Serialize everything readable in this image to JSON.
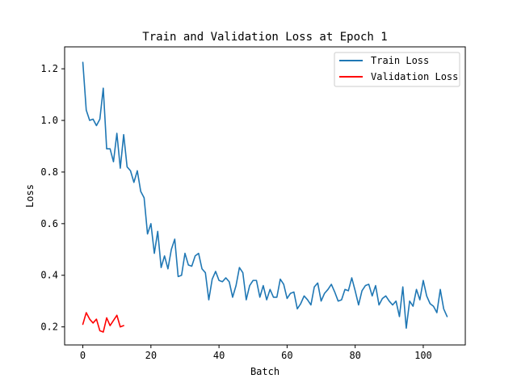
{
  "chart_data": {
    "type": "line",
    "title": "Train and Validation Loss at Epoch 1",
    "xlabel": "Batch",
    "ylabel": "Loss",
    "xlim": [
      -5.35,
      112.35
    ],
    "ylim": [
      0.13,
      1.285
    ],
    "xticks": [
      0,
      20,
      40,
      60,
      80,
      100
    ],
    "xtick_labels": [
      "0",
      "20",
      "40",
      "60",
      "80",
      "100"
    ],
    "yticks": [
      0.2,
      0.4,
      0.6,
      0.8,
      1.0,
      1.2
    ],
    "ytick_labels": [
      "0.2",
      "0.4",
      "0.6",
      "0.8",
      "1.0",
      "1.2"
    ],
    "grid": false,
    "legend_position": "upper right",
    "series": [
      {
        "name": "Train Loss",
        "color": "#1f77b4",
        "values": [
          1.225,
          1.04,
          1.0,
          1.005,
          0.98,
          1.005,
          1.125,
          0.89,
          0.89,
          0.84,
          0.95,
          0.815,
          0.945,
          0.82,
          0.805,
          0.76,
          0.805,
          0.725,
          0.7,
          0.56,
          0.6,
          0.485,
          0.57,
          0.43,
          0.475,
          0.425,
          0.5,
          0.54,
          0.395,
          0.4,
          0.485,
          0.44,
          0.435,
          0.475,
          0.485,
          0.425,
          0.41,
          0.305,
          0.385,
          0.415,
          0.38,
          0.375,
          0.39,
          0.375,
          0.315,
          0.36,
          0.43,
          0.41,
          0.305,
          0.36,
          0.38,
          0.38,
          0.315,
          0.36,
          0.305,
          0.345,
          0.315,
          0.315,
          0.385,
          0.365,
          0.31,
          0.33,
          0.335,
          0.27,
          0.29,
          0.32,
          0.305,
          0.285,
          0.355,
          0.37,
          0.3,
          0.33,
          0.345,
          0.365,
          0.335,
          0.3,
          0.305,
          0.345,
          0.34,
          0.39,
          0.34,
          0.285,
          0.34,
          0.36,
          0.365,
          0.32,
          0.36,
          0.285,
          0.31,
          0.32,
          0.3,
          0.285,
          0.3,
          0.24,
          0.355,
          0.195,
          0.3,
          0.28,
          0.345,
          0.305,
          0.38,
          0.32,
          0.29,
          0.28,
          0.255,
          0.345,
          0.27,
          0.24
        ]
      },
      {
        "name": "Validation Loss",
        "color": "#ff0000",
        "values": [
          0.21,
          0.255,
          0.23,
          0.215,
          0.23,
          0.185,
          0.18,
          0.235,
          0.205,
          0.225,
          0.245,
          0.2,
          0.205
        ]
      }
    ]
  }
}
